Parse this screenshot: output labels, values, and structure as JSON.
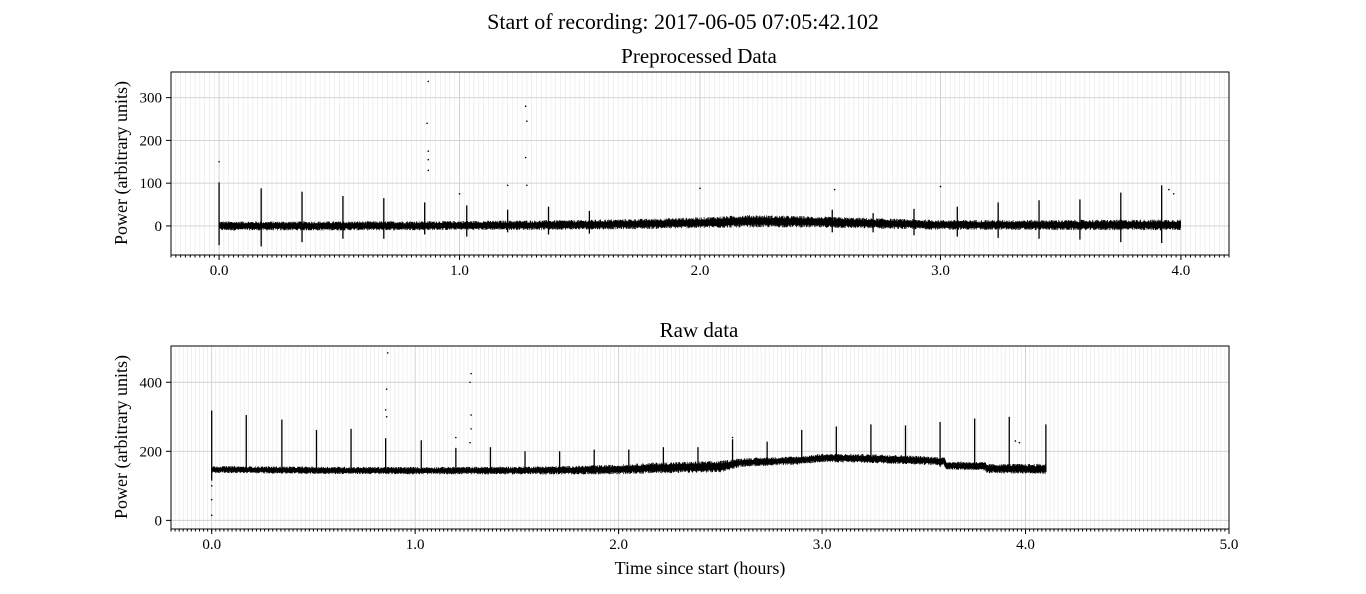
{
  "suptitle": "Start of recording: 2017-06-05 07:05:42.102",
  "chart_data": [
    {
      "type": "line",
      "title": "Preprocessed Data",
      "xlabel": "",
      "ylabel": "Power (arbitrary units)",
      "xlim": [
        -0.2,
        4.2
      ],
      "ylim": [
        -68,
        360
      ],
      "xticks": [
        0.0,
        1.0,
        2.0,
        3.0,
        4.0
      ],
      "xtick_labels": [
        "0.0",
        "1.0",
        "2.0",
        "3.0",
        "4.0"
      ],
      "yticks": [
        0,
        100,
        200,
        300
      ],
      "ytick_labels": [
        "0",
        "100",
        "200",
        "300"
      ],
      "grid": true,
      "minor_grid_step": 0.02,
      "series": [
        {
          "color": "#000000",
          "x_start": 0.0,
          "x_end": 4.0,
          "band": {
            "x": [
              0.0,
              0.5,
              1.0,
              1.5,
              1.8,
              2.0,
              2.2,
              2.4,
              2.6,
              3.0,
              3.5,
              4.0
            ],
            "low": [
              -8,
              -8,
              -7,
              -6,
              -4,
              -2,
              0,
              0,
              -2,
              -6,
              -7,
              -7
            ],
            "high": [
              8,
              8,
              9,
              11,
              14,
              17,
              22,
              20,
              17,
              11,
              11,
              12
            ]
          },
          "spikes": [
            {
              "x": 0.0,
              "top": 102,
              "bottom": -45
            },
            {
              "x": 0.175,
              "top": 88,
              "bottom": -48
            },
            {
              "x": 0.345,
              "top": 80,
              "bottom": -38
            },
            {
              "x": 0.515,
              "top": 70,
              "bottom": -30
            },
            {
              "x": 0.685,
              "top": 65,
              "bottom": -30
            },
            {
              "x": 0.855,
              "top": 55,
              "bottom": -20
            },
            {
              "x": 1.03,
              "top": 48,
              "bottom": -25
            },
            {
              "x": 1.2,
              "top": 38,
              "bottom": -15
            },
            {
              "x": 1.37,
              "top": 45,
              "bottom": -20
            },
            {
              "x": 1.54,
              "top": 35,
              "bottom": -18
            },
            {
              "x": 2.55,
              "top": 38,
              "bottom": -15
            },
            {
              "x": 2.72,
              "top": 30,
              "bottom": -15
            },
            {
              "x": 2.89,
              "top": 40,
              "bottom": -22
            },
            {
              "x": 3.07,
              "top": 45,
              "bottom": -25
            },
            {
              "x": 3.24,
              "top": 55,
              "bottom": -28
            },
            {
              "x": 3.41,
              "top": 60,
              "bottom": -30
            },
            {
              "x": 3.58,
              "top": 62,
              "bottom": -32
            },
            {
              "x": 3.75,
              "top": 78,
              "bottom": -38
            },
            {
              "x": 3.92,
              "top": 95,
              "bottom": -40
            }
          ],
          "outliers": [
            {
              "x": 0.0,
              "y": 150
            },
            {
              "x": 0.87,
              "y": 338
            },
            {
              "x": 0.865,
              "y": 240
            },
            {
              "x": 0.87,
              "y": 175
            },
            {
              "x": 0.87,
              "y": 155
            },
            {
              "x": 0.87,
              "y": 130
            },
            {
              "x": 1.275,
              "y": 280
            },
            {
              "x": 1.28,
              "y": 245
            },
            {
              "x": 1.275,
              "y": 160
            },
            {
              "x": 1.28,
              "y": 95
            },
            {
              "x": 1.0,
              "y": 75
            },
            {
              "x": 1.2,
              "y": 95
            },
            {
              "x": 2.0,
              "y": 88
            },
            {
              "x": 3.0,
              "y": 92
            },
            {
              "x": 2.56,
              "y": 85
            },
            {
              "x": 3.95,
              "y": 85
            },
            {
              "x": 3.97,
              "y": 75
            }
          ]
        }
      ]
    },
    {
      "type": "line",
      "title": "Raw data",
      "xlabel": "Time since start (hours)",
      "ylabel": "Power (arbitrary units)",
      "xlim": [
        -0.2,
        5.0
      ],
      "ylim": [
        -25,
        505
      ],
      "xticks": [
        0.0,
        1.0,
        2.0,
        3.0,
        4.0,
        5.0
      ],
      "xtick_labels": [
        "0.0",
        "1.0",
        "2.0",
        "3.0",
        "4.0",
        "5.0"
      ],
      "yticks": [
        0,
        200,
        400
      ],
      "ytick_labels": [
        "0",
        "200",
        "400"
      ],
      "grid": true,
      "minor_grid_step": 0.02,
      "series": [
        {
          "color": "#000000",
          "x_start": 0.0,
          "x_end": 4.1,
          "band": {
            "x": [
              0.0,
              0.5,
              1.0,
              1.5,
              1.8,
              2.0,
              2.2,
              2.5,
              2.6,
              2.9,
              3.0,
              3.3,
              3.6,
              3.61,
              3.8,
              3.81,
              4.1
            ],
            "low": [
              140,
              137,
              136,
              136,
              136,
              137,
              140,
              143,
              158,
              165,
              172,
              168,
              162,
              150,
              148,
              140,
              138
            ],
            "high": [
              155,
              153,
              152,
              153,
              155,
              158,
              164,
              168,
              177,
              183,
              190,
              188,
              180,
              168,
              166,
              160,
              160
            ]
          },
          "spikes": [
            {
              "x": 0.0,
              "top": 318,
              "bottom": 115
            },
            {
              "x": 0.17,
              "top": 305,
              "bottom": 140
            },
            {
              "x": 0.345,
              "top": 292,
              "bottom": 140
            },
            {
              "x": 0.515,
              "top": 262,
              "bottom": 140
            },
            {
              "x": 0.685,
              "top": 265,
              "bottom": 140
            },
            {
              "x": 0.855,
              "top": 238,
              "bottom": 140
            },
            {
              "x": 1.03,
              "top": 232,
              "bottom": 140
            },
            {
              "x": 1.2,
              "top": 210,
              "bottom": 140
            },
            {
              "x": 1.37,
              "top": 212,
              "bottom": 140
            },
            {
              "x": 1.54,
              "top": 200,
              "bottom": 140
            },
            {
              "x": 1.71,
              "top": 200,
              "bottom": 140
            },
            {
              "x": 1.88,
              "top": 205,
              "bottom": 140
            },
            {
              "x": 2.05,
              "top": 205,
              "bottom": 140
            },
            {
              "x": 2.22,
              "top": 212,
              "bottom": 145
            },
            {
              "x": 2.39,
              "top": 212,
              "bottom": 145
            },
            {
              "x": 2.56,
              "top": 235,
              "bottom": 150
            },
            {
              "x": 2.73,
              "top": 228,
              "bottom": 160
            },
            {
              "x": 2.9,
              "top": 262,
              "bottom": 165
            },
            {
              "x": 3.07,
              "top": 272,
              "bottom": 172
            },
            {
              "x": 3.24,
              "top": 278,
              "bottom": 168
            },
            {
              "x": 3.41,
              "top": 275,
              "bottom": 165
            },
            {
              "x": 3.58,
              "top": 285,
              "bottom": 155
            },
            {
              "x": 3.75,
              "top": 295,
              "bottom": 148
            },
            {
              "x": 3.92,
              "top": 300,
              "bottom": 140
            },
            {
              "x": 4.1,
              "top": 278,
              "bottom": 140
            }
          ],
          "outliers": [
            {
              "x": 0.0,
              "y": 100
            },
            {
              "x": 0.0,
              "y": 60
            },
            {
              "x": 0.0,
              "y": 15
            },
            {
              "x": 0.865,
              "y": 485
            },
            {
              "x": 0.86,
              "y": 380
            },
            {
              "x": 0.855,
              "y": 320
            },
            {
              "x": 0.86,
              "y": 300
            },
            {
              "x": 1.275,
              "y": 425
            },
            {
              "x": 1.27,
              "y": 400
            },
            {
              "x": 1.275,
              "y": 305
            },
            {
              "x": 1.275,
              "y": 265
            },
            {
              "x": 1.2,
              "y": 240
            },
            {
              "x": 1.27,
              "y": 225
            },
            {
              "x": 3.95,
              "y": 230
            },
            {
              "x": 3.97,
              "y": 225
            },
            {
              "x": 2.56,
              "y": 240
            }
          ]
        }
      ]
    }
  ]
}
